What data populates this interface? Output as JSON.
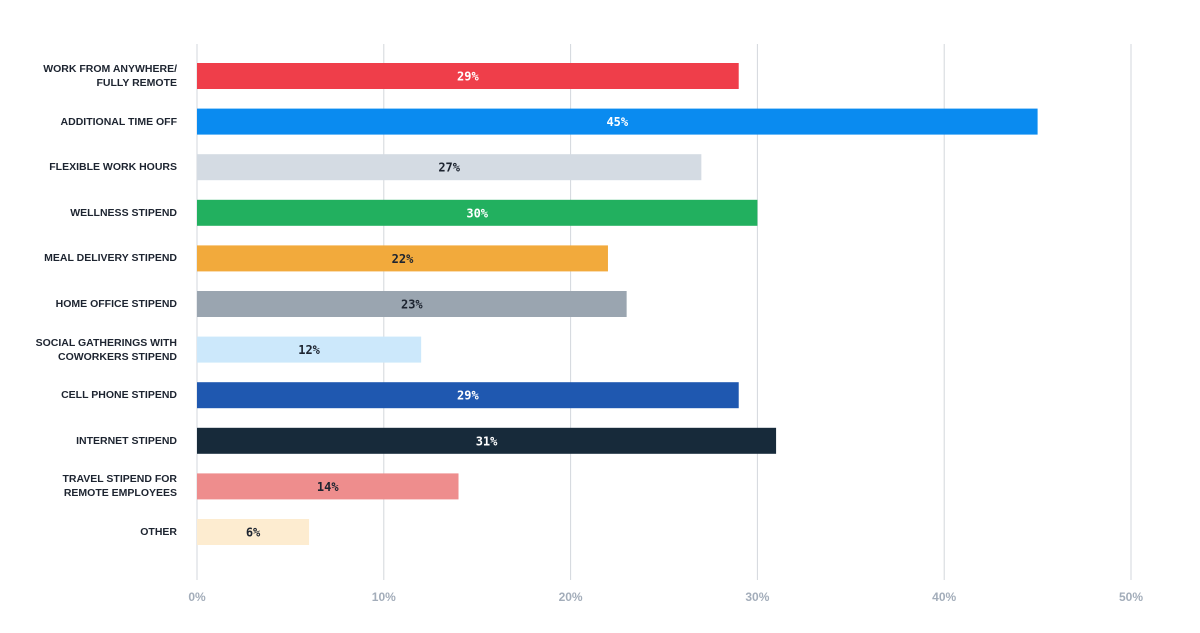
{
  "chart_data": {
    "type": "bar",
    "orientation": "horizontal",
    "categories": [
      "WORK FROM ANYWHERE/\nFULLY REMOTE",
      "ADDITIONAL TIME OFF",
      "FLEXIBLE WORK  HOURS",
      "WELLNESS STIPEND",
      "MEAL DELIVERY STIPEND",
      "HOME OFFICE STIPEND",
      "SOCIAL GATHERINGS WITH\nCOWORKERS STIPEND",
      "CELL PHONE STIPEND",
      "INTERNET STIPEND",
      "TRAVEL STIPEND FOR\nREMOTE EMPLOYEES",
      "OTHER"
    ],
    "values": [
      29,
      45,
      27,
      30,
      22,
      23,
      12,
      29,
      31,
      14,
      6
    ],
    "value_labels": [
      "29%",
      "45%",
      "27%",
      "30%",
      "22%",
      "23%",
      "12%",
      "29%",
      "31%",
      "14%",
      "6%"
    ],
    "colors": [
      "#ef3e4a",
      "#0a8bf0",
      "#d4dbe3",
      "#22b05f",
      "#f2aa3c",
      "#9aa5b0",
      "#cce8fb",
      "#1f58b0",
      "#172a3a",
      "#ee8d8d",
      "#fdecd0"
    ],
    "xlim": [
      0,
      50
    ],
    "xticks": [
      {
        "value": 0,
        "label": "0%"
      },
      {
        "value": 10,
        "label": "10%"
      },
      {
        "value": 20,
        "label": "20%"
      },
      {
        "value": 30,
        "label": "30%"
      },
      {
        "value": 40,
        "label": "40%"
      },
      {
        "value": 50,
        "label": "50%"
      }
    ],
    "grid": true
  }
}
